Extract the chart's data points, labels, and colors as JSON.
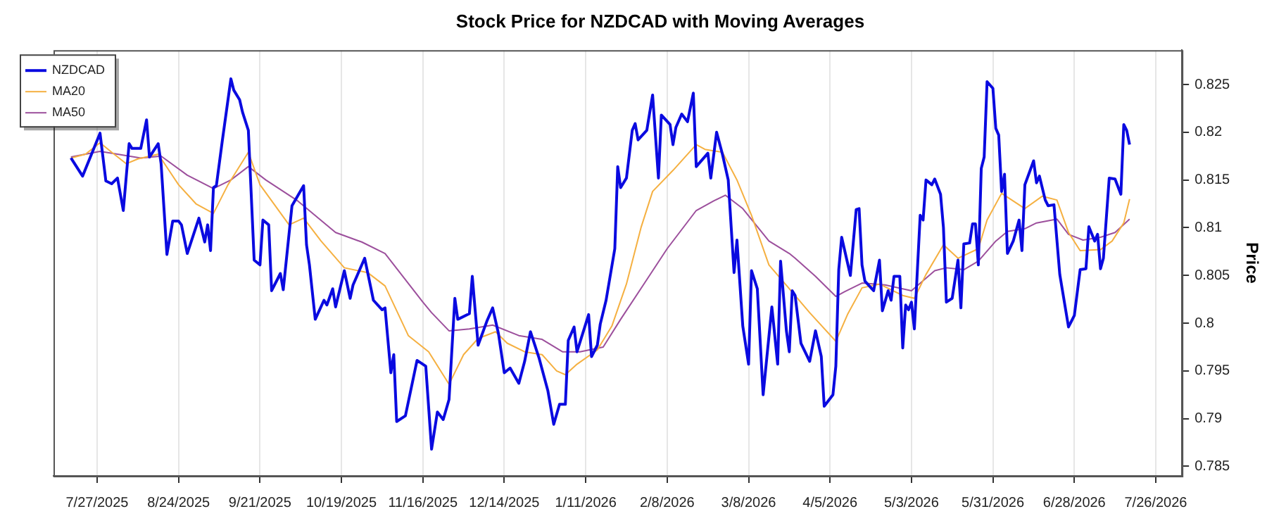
{
  "chart_data": {
    "type": "line",
    "title": "Stock Price for NZDCAD with Moving Averages",
    "ylabel": "Price",
    "legend": "top left",
    "grid": "x",
    "marker": "none",
    "line_style": "solid",
    "xlim": [
      "2025-07-12",
      "2026-08-04"
    ],
    "ylim": [
      0.784,
      0.8286
    ],
    "xticks": [
      {
        "value": "2025-07-27",
        "label": "7/27/2025"
      },
      {
        "value": "2025-08-24",
        "label": "8/24/2025"
      },
      {
        "value": "2025-09-21",
        "label": "9/21/2025"
      },
      {
        "value": "2025-10-19",
        "label": "10/19/2025"
      },
      {
        "value": "2025-11-16",
        "label": "11/16/2025"
      },
      {
        "value": "2025-12-14",
        "label": "12/14/2025"
      },
      {
        "value": "2026-01-11",
        "label": "1/11/2026"
      },
      {
        "value": "2026-02-08",
        "label": "2/8/2026"
      },
      {
        "value": "2026-03-08",
        "label": "3/8/2026"
      },
      {
        "value": "2026-04-05",
        "label": "4/5/2026"
      },
      {
        "value": "2026-05-03",
        "label": "5/3/2026"
      },
      {
        "value": "2026-05-31",
        "label": "5/31/2026"
      },
      {
        "value": "2026-06-28",
        "label": "6/28/2026"
      },
      {
        "value": "2026-07-26",
        "label": "7/26/2026"
      }
    ],
    "yticks": [
      0.785,
      0.79,
      0.795,
      0.8,
      0.805,
      0.81,
      0.815,
      0.82,
      0.825
    ],
    "series": [
      {
        "name": "NZDCAD",
        "type": "line",
        "color": "#0a0ae0",
        "x": [
          "2025-07-18",
          "2025-07-22",
          "2025-07-28",
          "2025-07-30",
          "2025-08-01",
          "2025-08-03",
          "2025-08-05",
          "2025-08-07",
          "2025-08-08",
          "2025-08-11",
          "2025-08-13",
          "2025-08-14",
          "2025-08-17",
          "2025-08-18",
          "2025-08-20",
          "2025-08-22",
          "2025-08-24",
          "2025-08-25",
          "2025-08-27",
          "2025-08-31",
          "2025-09-02",
          "2025-09-03",
          "2025-09-04",
          "2025-09-05",
          "2025-09-06",
          "2025-09-08",
          "2025-09-11",
          "2025-09-12",
          "2025-09-14",
          "2025-09-15",
          "2025-09-17",
          "2025-09-19",
          "2025-09-21",
          "2025-09-22",
          "2025-09-24",
          "2025-09-25",
          "2025-09-28",
          "2025-09-29",
          "2025-10-02",
          "2025-10-06",
          "2025-10-07",
          "2025-10-08",
          "2025-10-10",
          "2025-10-13",
          "2025-10-14",
          "2025-10-16",
          "2025-10-17",
          "2025-10-20",
          "2025-10-22",
          "2025-10-23",
          "2025-10-27",
          "2025-10-30",
          "2025-11-02",
          "2025-11-03",
          "2025-11-04",
          "2025-11-05",
          "2025-11-06",
          "2025-11-07",
          "2025-11-10",
          "2025-11-14",
          "2025-11-17",
          "2025-11-19",
          "2025-11-21",
          "2025-11-23",
          "2025-11-25",
          "2025-11-27",
          "2025-11-28",
          "2025-12-02",
          "2025-12-03",
          "2025-12-05",
          "2025-12-08",
          "2025-12-10",
          "2025-12-12",
          "2025-12-14",
          "2025-12-16",
          "2025-12-19",
          "2025-12-21",
          "2025-12-23",
          "2025-12-26",
          "2025-12-29",
          "2025-12-31",
          "2026-01-02",
          "2026-01-04",
          "2026-01-05",
          "2026-01-07",
          "2026-01-08",
          "2026-01-12",
          "2026-01-13",
          "2026-01-15",
          "2026-01-16",
          "2026-01-18",
          "2026-01-21",
          "2026-01-22",
          "2026-01-23",
          "2026-01-25",
          "2026-01-27",
          "2026-01-28",
          "2026-01-29",
          "2026-02-01",
          "2026-02-03",
          "2026-02-05",
          "2026-02-06",
          "2026-02-09",
          "2026-02-10",
          "2026-02-11",
          "2026-02-13",
          "2026-02-15",
          "2026-02-17",
          "2026-02-18",
          "2026-02-22",
          "2026-02-23",
          "2026-02-25",
          "2026-02-27",
          "2026-03-01",
          "2026-03-03",
          "2026-03-04",
          "2026-03-06",
          "2026-03-08",
          "2026-03-09",
          "2026-03-11",
          "2026-03-13",
          "2026-03-16",
          "2026-03-18",
          "2026-03-19",
          "2026-03-21",
          "2026-03-22",
          "2026-03-23",
          "2026-03-24",
          "2026-03-26",
          "2026-03-29",
          "2026-03-31",
          "2026-04-02",
          "2026-04-03",
          "2026-04-06",
          "2026-04-07",
          "2026-04-08",
          "2026-04-09",
          "2026-04-12",
          "2026-04-14",
          "2026-04-15",
          "2026-04-16",
          "2026-04-17",
          "2026-04-20",
          "2026-04-22",
          "2026-04-23",
          "2026-04-25",
          "2026-04-26",
          "2026-04-27",
          "2026-04-29",
          "2026-04-30",
          "2026-05-01",
          "2026-05-02",
          "2026-05-03",
          "2026-05-04",
          "2026-05-06",
          "2026-05-07",
          "2026-05-08",
          "2026-05-10",
          "2026-05-11",
          "2026-05-13",
          "2026-05-14",
          "2026-05-15",
          "2026-05-17",
          "2026-05-19",
          "2026-05-20",
          "2026-05-21",
          "2026-05-23",
          "2026-05-24",
          "2026-05-25",
          "2026-05-26",
          "2026-05-27",
          "2026-05-28",
          "2026-05-29",
          "2026-05-31",
          "2026-06-01",
          "2026-06-02",
          "2026-06-03",
          "2026-06-04",
          "2026-06-05",
          "2026-06-07",
          "2026-06-09",
          "2026-06-10",
          "2026-06-11",
          "2026-06-14",
          "2026-06-15",
          "2026-06-16",
          "2026-06-18",
          "2026-06-19",
          "2026-06-21",
          "2026-06-23",
          "2026-06-26",
          "2026-06-28",
          "2026-06-30",
          "2026-07-02",
          "2026-07-03",
          "2026-07-05",
          "2026-07-06",
          "2026-07-07",
          "2026-07-08",
          "2026-07-10",
          "2026-07-12",
          "2026-07-14",
          "2026-07-15",
          "2026-07-16",
          "2026-07-17"
        ],
        "values": [
          0.8173,
          0.8154,
          0.8199,
          0.8149,
          0.8146,
          0.8152,
          0.8118,
          0.8188,
          0.8183,
          0.8183,
          0.8213,
          0.8174,
          0.8188,
          0.8167,
          0.8072,
          0.8107,
          0.8107,
          0.8103,
          0.8073,
          0.811,
          0.8085,
          0.8103,
          0.8076,
          0.8142,
          0.8144,
          0.819,
          0.8256,
          0.8244,
          0.8234,
          0.8221,
          0.8202,
          0.8066,
          0.8061,
          0.8108,
          0.8103,
          0.8034,
          0.8052,
          0.8035,
          0.8123,
          0.8144,
          0.8082,
          0.8061,
          0.8004,
          0.8024,
          0.8019,
          0.8036,
          0.8017,
          0.8055,
          0.8026,
          0.804,
          0.8068,
          0.8024,
          0.8014,
          0.8016,
          0.7982,
          0.7948,
          0.7967,
          0.7897,
          0.7903,
          0.7961,
          0.7955,
          0.7868,
          0.7907,
          0.7899,
          0.792,
          0.8026,
          0.8004,
          0.801,
          0.8049,
          0.7977,
          0.8002,
          0.8016,
          0.7989,
          0.7948,
          0.7953,
          0.7937,
          0.796,
          0.7991,
          0.7963,
          0.7929,
          0.7894,
          0.7915,
          0.7915,
          0.7982,
          0.7996,
          0.797,
          0.8009,
          0.7965,
          0.7977,
          0.7999,
          0.8024,
          0.8078,
          0.8164,
          0.8142,
          0.8152,
          0.8202,
          0.8209,
          0.8192,
          0.8202,
          0.8239,
          0.8152,
          0.8218,
          0.8208,
          0.8187,
          0.8205,
          0.8219,
          0.8211,
          0.8241,
          0.8164,
          0.8178,
          0.8152,
          0.82,
          0.8177,
          0.815,
          0.8053,
          0.8087,
          0.7997,
          0.7957,
          0.8055,
          0.8036,
          0.7925,
          0.8017,
          0.7957,
          0.8065,
          0.7992,
          0.797,
          0.8034,
          0.8029,
          0.7979,
          0.796,
          0.7992,
          0.7965,
          0.7913,
          0.7925,
          0.7955,
          0.8056,
          0.809,
          0.805,
          0.8119,
          0.812,
          0.8061,
          0.8044,
          0.8034,
          0.8066,
          0.8013,
          0.8034,
          0.8024,
          0.8049,
          0.8049,
          0.7974,
          0.8019,
          0.8014,
          0.8022,
          0.7994,
          0.8113,
          0.8108,
          0.815,
          0.8145,
          0.8151,
          0.8135,
          0.81,
          0.8022,
          0.8026,
          0.8066,
          0.8016,
          0.8083,
          0.8084,
          0.8104,
          0.8104,
          0.8061,
          0.8162,
          0.8174,
          0.8253,
          0.8246,
          0.8204,
          0.8197,
          0.8138,
          0.8156,
          0.8073,
          0.8086,
          0.8108,
          0.8076,
          0.8145,
          0.817,
          0.8147,
          0.8154,
          0.8129,
          0.8123,
          0.8124,
          0.8051,
          0.7996,
          0.8008,
          0.8056,
          0.8057,
          0.8101,
          0.8086,
          0.8093,
          0.8057,
          0.8068,
          0.8152,
          0.8151,
          0.8135,
          0.8208,
          0.8202,
          0.8187
        ]
      },
      {
        "name": "MA20",
        "type": "line",
        "color": "#f5b041",
        "x": [
          "2025-07-18",
          "2025-07-23",
          "2025-07-28",
          "2025-08-01",
          "2025-08-06",
          "2025-08-10",
          "2025-08-17",
          "2025-08-24",
          "2025-08-30",
          "2025-09-05",
          "2025-09-10",
          "2025-09-17",
          "2025-09-21",
          "2025-10-01",
          "2025-10-06",
          "2025-10-12",
          "2025-10-20",
          "2025-10-28",
          "2025-11-03",
          "2025-11-11",
          "2025-11-18",
          "2025-11-25",
          "2025-11-30",
          "2025-12-05",
          "2025-12-11",
          "2025-12-15",
          "2025-12-21",
          "2025-12-27",
          "2026-01-01",
          "2026-01-04",
          "2026-01-08",
          "2026-01-15",
          "2026-01-20",
          "2026-01-25",
          "2026-01-30",
          "2026-02-03",
          "2026-02-10",
          "2026-02-18",
          "2026-02-21",
          "2026-02-27",
          "2026-03-04",
          "2026-03-09",
          "2026-03-15",
          "2026-03-22",
          "2026-03-29",
          "2026-04-07",
          "2026-04-11",
          "2026-04-16",
          "2026-04-22",
          "2026-04-30",
          "2026-05-04",
          "2026-05-08",
          "2026-05-14",
          "2026-05-19",
          "2026-05-26",
          "2026-05-29",
          "2026-06-03",
          "2026-06-11",
          "2026-06-17",
          "2026-06-22",
          "2026-06-26",
          "2026-06-30",
          "2026-07-07",
          "2026-07-11",
          "2026-07-15",
          "2026-07-17"
        ],
        "values": [
          0.8173,
          0.8177,
          0.8189,
          0.8179,
          0.8167,
          0.8172,
          0.8177,
          0.8145,
          0.8125,
          0.8115,
          0.8145,
          0.8179,
          0.8145,
          0.8103,
          0.811,
          0.8086,
          0.8058,
          0.8053,
          0.8039,
          0.7987,
          0.797,
          0.7936,
          0.7967,
          0.7984,
          0.7991,
          0.7979,
          0.797,
          0.7967,
          0.795,
          0.7946,
          0.7957,
          0.7972,
          0.7997,
          0.8041,
          0.81,
          0.8138,
          0.816,
          0.8187,
          0.8182,
          0.8179,
          0.815,
          0.8113,
          0.8061,
          0.8036,
          0.8011,
          0.7981,
          0.8009,
          0.8037,
          0.8041,
          0.8029,
          0.8026,
          0.8051,
          0.8082,
          0.8068,
          0.8078,
          0.8108,
          0.8136,
          0.812,
          0.8133,
          0.8129,
          0.8095,
          0.8076,
          0.8077,
          0.8086,
          0.8105,
          0.813
        ]
      },
      {
        "name": "MA50",
        "type": "line",
        "color": "#9c4f9c",
        "x": [
          "2025-07-18",
          "2025-07-28",
          "2025-08-03",
          "2025-08-11",
          "2025-08-18",
          "2025-08-27",
          "2025-09-05",
          "2025-09-11",
          "2025-09-17",
          "2025-09-23",
          "2025-10-04",
          "2025-10-17",
          "2025-10-26",
          "2025-11-03",
          "2025-11-16",
          "2025-11-19",
          "2025-11-25",
          "2025-12-02",
          "2025-12-10",
          "2025-12-19",
          "2025-12-27",
          "2026-01-03",
          "2026-01-09",
          "2026-01-17",
          "2026-01-23",
          "2026-01-31",
          "2026-02-08",
          "2026-02-18",
          "2026-02-24",
          "2026-02-28",
          "2026-03-06",
          "2026-03-15",
          "2026-03-22",
          "2026-03-24",
          "2026-03-31",
          "2026-04-07",
          "2026-04-10",
          "2026-04-16",
          "2026-04-24",
          "2026-05-03",
          "2026-05-11",
          "2026-05-15",
          "2026-05-21",
          "2026-05-26",
          "2026-06-01",
          "2026-06-05",
          "2026-06-11",
          "2026-06-15",
          "2026-06-22",
          "2026-06-26",
          "2026-07-01",
          "2026-07-07",
          "2026-07-12",
          "2026-07-17"
        ],
        "values": [
          0.8174,
          0.818,
          0.8177,
          0.8173,
          0.8175,
          0.8155,
          0.8141,
          0.815,
          0.8164,
          0.815,
          0.8128,
          0.8095,
          0.8085,
          0.8073,
          0.8022,
          0.8011,
          0.7992,
          0.7994,
          0.7998,
          0.7987,
          0.7983,
          0.797,
          0.797,
          0.7975,
          0.8004,
          0.8041,
          0.8078,
          0.8118,
          0.8128,
          0.8134,
          0.812,
          0.8086,
          0.8073,
          0.8068,
          0.8049,
          0.8028,
          0.8033,
          0.8042,
          0.804,
          0.8034,
          0.8055,
          0.8058,
          0.8056,
          0.8065,
          0.8086,
          0.8096,
          0.8099,
          0.8105,
          0.8109,
          0.8093,
          0.8087,
          0.809,
          0.8095,
          0.8109
        ]
      }
    ]
  }
}
